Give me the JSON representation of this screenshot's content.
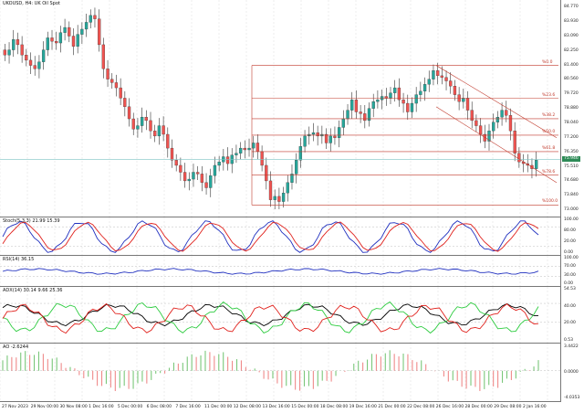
{
  "main": {
    "title": "UKOUSD, H4:  UK Oil Spot",
    "price_ticks": [
      "84.770",
      "83.930",
      "83.090",
      "82.250",
      "81.400",
      "80.560",
      "79.720",
      "78.880",
      "78.040",
      "77.200",
      "76.350",
      "75.510",
      "74.680",
      "73.840",
      "73.000"
    ],
    "current_price": "75.946",
    "fib_levels": [
      "%0.0",
      "%23.6",
      "%38.2",
      "%50.0",
      "%61.8",
      "%78.6",
      "%100.0"
    ]
  },
  "stoch": {
    "title": "Stoch(5,3,3) 21.99 15.39",
    "ticks": [
      "100.00",
      "80.00",
      "20.00",
      "0.00"
    ]
  },
  "rsi": {
    "title": "RSI(14) 36.15",
    "ticks": [
      "100.00",
      "70.00",
      "30.00",
      "0.00"
    ]
  },
  "adx": {
    "title": "ADX(14) 30.14 9.66 25.36",
    "ticks": [
      "54.53",
      "40.00",
      "20.00",
      "0.53"
    ]
  },
  "ao": {
    "title": "AO -2.6244",
    "ticks": [
      "3.4422",
      "0.0000",
      "-4.0353"
    ]
  },
  "time_labels": [
    "27 Nov 2023",
    "29 Nov 00:00",
    "30 Nov 08:00",
    "1 Dec 16:00",
    "5 Dec 00:00",
    "6 Dec 08:00",
    "7 Dec 16:00",
    "11 Dec 00:00",
    "12 Dec 08:00",
    "13 Dec 16:00",
    "15 Dec 00:00",
    "18 Dec 08:00",
    "19 Dec 16:00",
    "21 Dec 00:00",
    "22 Dec 08:00",
    "26 Dec 16:00",
    "28 Dec 00:00",
    "29 Dec 08:00",
    "2 Jan 16:00"
  ],
  "colors": {
    "bull": "#26a69a",
    "bear": "#ef5350",
    "fib": "#c0392b",
    "line_blue": "#1f2fbf",
    "line_red": "#e0201b",
    "adx_black": "#000000",
    "adx_green": "#2ecc40",
    "price_tag": "#2e8b57"
  },
  "chart_data": {
    "type": "candlestick",
    "title": "UKOUSD, H4:  UK Oil Spot",
    "ylim": [
      73.0,
      84.77
    ],
    "close": [
      82.0,
      82.3,
      82.9,
      82.6,
      82.0,
      81.7,
      81.4,
      81.2,
      81.6,
      82.3,
      83.0,
      82.8,
      82.7,
      83.3,
      83.6,
      83.1,
      82.5,
      83.2,
      83.5,
      83.9,
      84.3,
      84.1,
      82.6,
      81.2,
      80.6,
      80.4,
      80.1,
      79.5,
      79.0,
      78.3,
      77.7,
      77.9,
      78.4,
      78.2,
      77.6,
      77.3,
      77.9,
      77.4,
      76.6,
      75.9,
      75.6,
      75.2,
      74.7,
      74.8,
      75.2,
      75.1,
      74.6,
      74.3,
      75.0,
      75.6,
      75.8,
      76.1,
      75.7,
      76.2,
      76.3,
      76.6,
      76.5,
      76.6,
      76.9,
      76.4,
      75.6,
      74.7,
      73.6,
      73.8,
      73.5,
      74.0,
      74.6,
      75.1,
      75.9,
      76.7,
      77.3,
      77.4,
      77.5,
      77.3,
      77.4,
      76.9,
      77.3,
      77.2,
      77.8,
      78.3,
      78.8,
      79.4,
      78.7,
      78.6,
      78.2,
      78.9,
      79.3,
      79.4,
      79.6,
      79.5,
      79.8,
      80.1,
      79.4,
      79.2,
      78.7,
      79.2,
      79.7,
      79.9,
      80.3,
      80.6,
      81.1,
      80.8,
      80.7,
      80.5,
      80.2,
      79.7,
      79.3,
      79.5,
      78.8,
      78.2,
      77.9,
      77.4,
      77.0,
      77.6,
      78.1,
      78.4,
      78.8,
      78.5,
      77.6,
      76.3,
      75.8,
      75.7,
      75.6,
      75.4,
      75.9
    ]
  }
}
